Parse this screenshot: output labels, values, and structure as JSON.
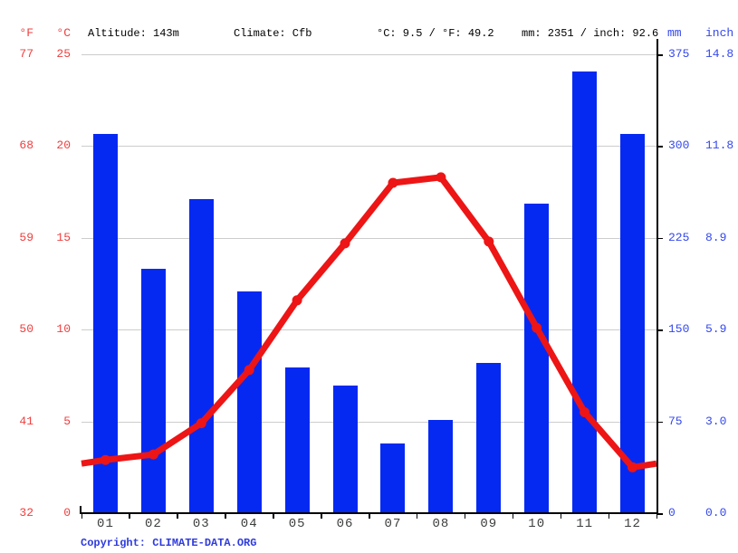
{
  "header": {
    "unit_f": "°F",
    "unit_c": "°C",
    "altitude": "Altitude: 143m",
    "climate": "Climate: Cfb",
    "avg_temp": "°C: 9.5 / °F: 49.2",
    "total_precip": "mm: 2351 / inch: 92.6",
    "unit_mm": "mm",
    "unit_inch": "inch"
  },
  "axes": {
    "fahrenheit_ticks": [
      "77",
      "68",
      "59",
      "50",
      "41",
      "32"
    ],
    "celsius_ticks": [
      "25",
      "20",
      "15",
      "10",
      "5",
      "0"
    ],
    "mm_ticks": [
      "375",
      "300",
      "225",
      "150",
      "75",
      "0"
    ],
    "inch_ticks": [
      "14.8",
      "11.8",
      "8.9",
      "5.9",
      "3.0",
      "0.0"
    ]
  },
  "chart_data": {
    "type": "bar",
    "subtype": "climate bar+line combo",
    "categories": [
      "01",
      "02",
      "03",
      "04",
      "05",
      "06",
      "07",
      "08",
      "09",
      "10",
      "11",
      "12"
    ],
    "series": [
      {
        "name": "precipitation_mm",
        "type": "bar",
        "values": [
          310,
          200,
          257,
          181,
          119,
          104,
          57,
          76,
          123,
          253,
          361,
          310
        ],
        "axis_range_mm": [
          0,
          375
        ],
        "color": "#0629f2"
      },
      {
        "name": "temperature_c",
        "type": "line",
        "values": [
          2.9,
          3.2,
          4.9,
          7.8,
          11.6,
          14.7,
          18.0,
          18.3,
          14.8,
          10.1,
          5.5,
          2.5
        ],
        "axis_range_c": [
          0,
          25
        ],
        "color": "#ed1515"
      }
    ],
    "title": "",
    "xlabel": "",
    "ylabel_left": "°F / °C",
    "ylabel_right": "mm / inch",
    "grid": true,
    "legend": false
  },
  "footer": {
    "copyright_label": "Copyright: ",
    "copyright_link": "CLIMATE-DATA.ORG"
  },
  "colors": {
    "bar_blue": "#0629f2",
    "line_red": "#ed1515",
    "label_red": "#ef3f3f",
    "label_blue": "#3448ec",
    "grid_gray": "#cccccc",
    "axis_black": "#000000",
    "month_gray": "#3d3d3d"
  }
}
